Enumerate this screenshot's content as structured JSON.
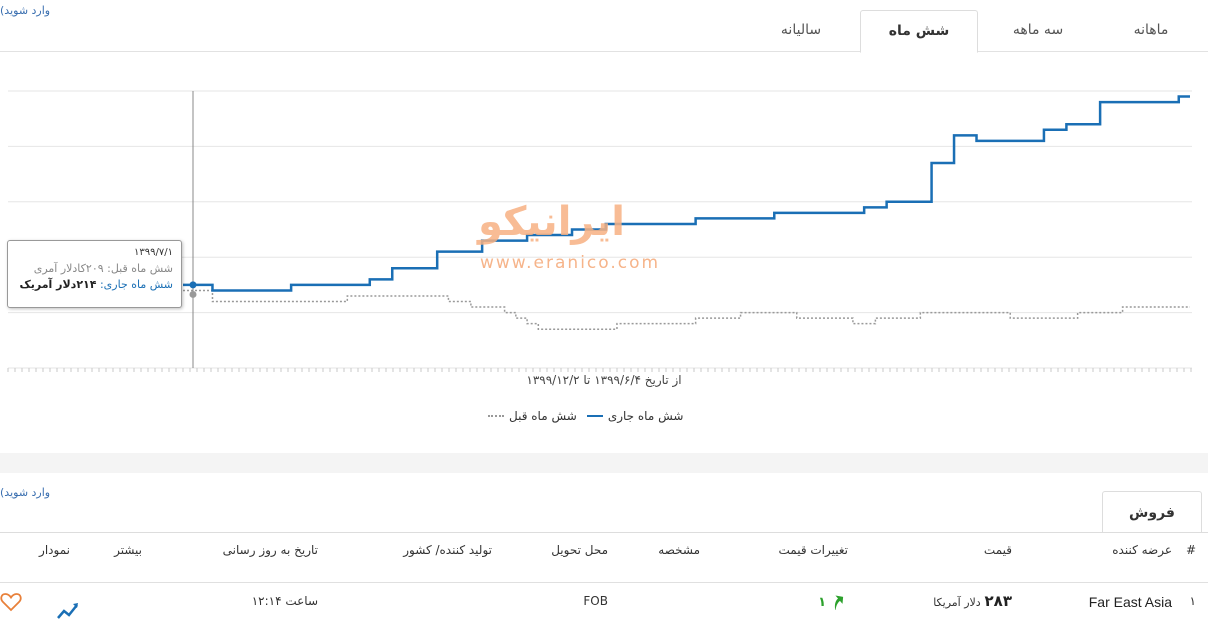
{
  "login_hint": "(وارد شوید",
  "tabs": [
    {
      "label": "ماهانه"
    },
    {
      "label": "سه ماهه"
    },
    {
      "label": "شش ماه"
    },
    {
      "label": "سالیانه"
    }
  ],
  "watermark": {
    "logo": "ایرانیکو",
    "url": "www.eranico.com"
  },
  "tooltip": {
    "date": "۱۳۹۹/۷/۱",
    "prev_label": "شش ماه قبل:",
    "prev_value": "۲۰۹کادلار آمری",
    "cur_label": "شش ماه جاری:",
    "cur_value": "۲۱۴دلار آمریک"
  },
  "date_range": "از تاریخ ۱۳۹۹/۶/۴ تا ۱۳۹۹/۱۲/۲",
  "legend": {
    "current": "شش ماه جاری",
    "previous": "شش ماه قبل"
  },
  "colors": {
    "current": "#1a6fb5",
    "previous": "#999999",
    "up": "#2da12d",
    "heart": "#e8803a"
  },
  "chart_data": {
    "type": "line",
    "title": "",
    "x_range_label": "از تاریخ ۱۳۹۹/۶/۴ تا ۱۳۹۹/۱۲/۲",
    "grid": true,
    "legend_position": "bottom",
    "series": [
      {
        "name": "شش ماه جاری",
        "values": [
          215,
          215,
          214,
          214,
          214,
          214,
          214,
          214,
          214,
          215,
          215,
          215,
          215,
          215,
          215,
          215,
          216,
          216,
          218,
          218,
          218,
          218,
          221,
          221,
          221,
          221,
          223,
          223,
          223,
          223,
          224,
          224,
          224,
          224,
          225,
          225,
          225,
          226,
          226,
          226,
          226,
          226,
          226,
          226,
          226,
          227,
          227,
          227,
          227,
          227,
          227,
          227,
          228,
          228,
          228,
          228,
          228,
          228,
          228,
          228,
          229,
          229,
          230,
          230,
          230,
          230,
          237,
          237,
          242,
          242,
          241,
          241,
          241,
          241,
          241,
          241,
          243,
          243,
          244,
          244,
          244,
          248,
          248,
          248,
          248,
          248,
          248,
          248,
          249,
          249
        ]
      },
      {
        "name": "شش ماه قبل",
        "values": [
          214,
          214,
          212,
          212,
          212,
          212,
          212,
          212,
          212,
          212,
          212,
          212,
          212,
          212,
          213,
          213,
          213,
          213,
          213,
          213,
          213,
          213,
          213,
          212,
          212,
          211,
          211,
          211,
          210,
          209,
          208,
          207,
          207,
          207,
          207,
          207,
          207,
          207,
          208,
          208,
          208,
          208,
          208,
          208,
          208,
          209,
          209,
          209,
          209,
          210,
          210,
          210,
          210,
          210,
          209,
          209,
          209,
          209,
          209,
          208,
          208,
          209,
          209,
          209,
          209,
          210,
          210,
          210,
          210,
          210,
          210,
          210,
          210,
          209,
          209,
          209,
          209,
          209,
          209,
          210,
          210,
          210,
          210,
          211,
          211,
          211,
          211,
          211,
          211,
          211
        ]
      }
    ]
  },
  "sales_tab": "فروش",
  "table": {
    "headers": {
      "num": "#",
      "supplier": "عرضه کننده",
      "price": "قیمت",
      "change": "تغییرات قیمت",
      "spec": "مشخصه",
      "delivery": "محل تحویل",
      "producer": "تولید کننده/ کشور",
      "updated": "تاریخ به روز رسانی",
      "more": "بیشتر",
      "chart": "نمودار"
    },
    "rows": [
      {
        "num": "۱",
        "supplier": "Far East Asia",
        "price": "۲۸۳",
        "price_unit": "دلار آمریکا",
        "change": "۱",
        "delivery": "FOB",
        "updated": "ساعت ۱۲:۱۴"
      }
    ]
  }
}
